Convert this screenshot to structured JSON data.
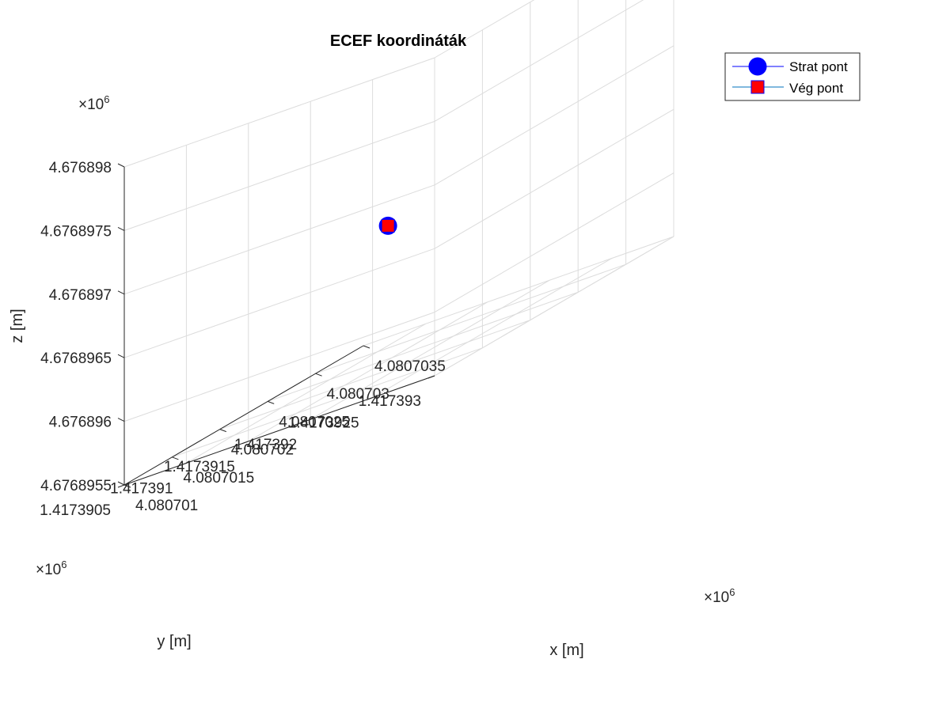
{
  "chart_data": {
    "type": "scatter",
    "title": "ECEF koordináták",
    "xlabel": "x [m]",
    "ylabel": "y [m]",
    "zlabel": "z [m]",
    "multiplier": "×10",
    "multiplier_exp": "6",
    "x_ticks": [
      "4.080701",
      "4.0807015",
      "4.080702",
      "4.0807025",
      "4.080703",
      "4.0807035"
    ],
    "y_ticks": [
      "1.4173905",
      "1.417391",
      "1.4173915",
      "1.417392",
      "1.4173925",
      "1.417393"
    ],
    "z_ticks": [
      "4.6768955",
      "4.676896",
      "4.6768965",
      "4.676897",
      "4.6768975",
      "4.676898"
    ],
    "xlim": [
      4.080701,
      4.0807035
    ],
    "ylim": [
      1.4173905,
      1.417393
    ],
    "zlim": [
      4.6768955,
      4.676898
    ],
    "grid": true,
    "legend_position": "top-right",
    "series": [
      {
        "name": "Strat pont",
        "marker": "circle",
        "color": "#0000ff",
        "edge": "#0000ff",
        "line_color": "#0000ff",
        "x": 4.0807022,
        "y": 1.4173917,
        "z": 4.6768966
      },
      {
        "name": "Vég pont",
        "marker": "square",
        "color": "#ff0000",
        "edge": "#0000ff",
        "line_color": "#0072bd",
        "x": 4.0807022,
        "y": 1.4173917,
        "z": 4.6768966
      }
    ]
  }
}
